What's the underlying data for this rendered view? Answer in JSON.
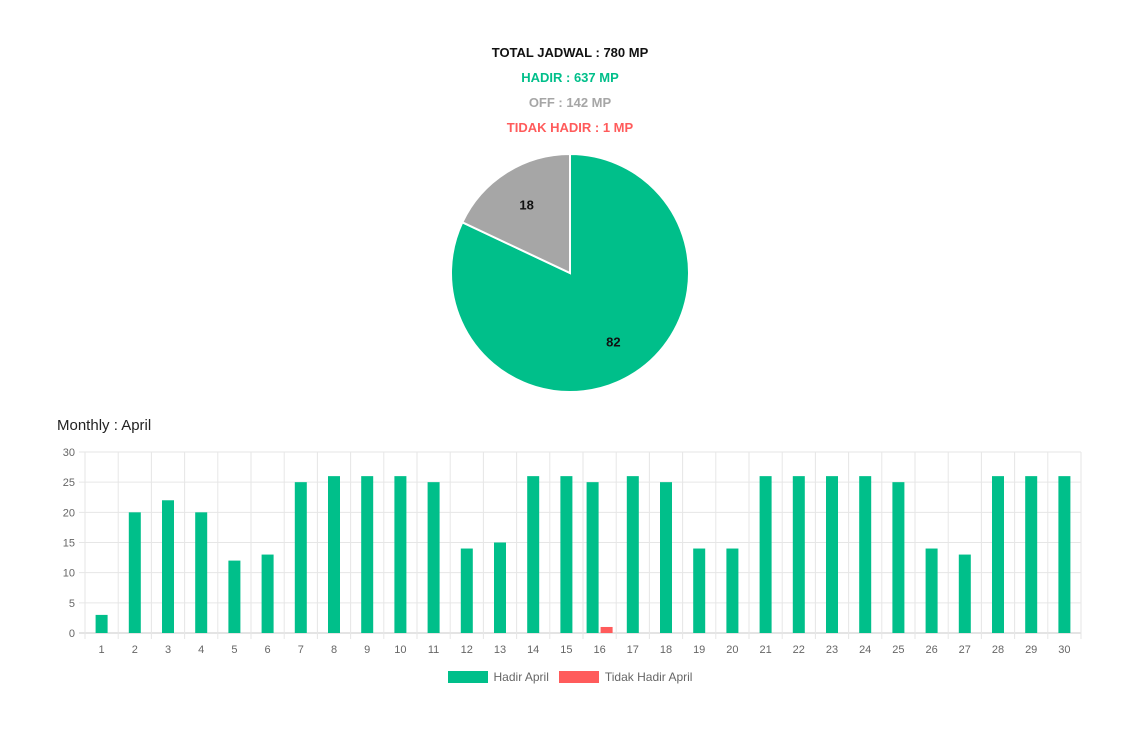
{
  "summary": {
    "total": "TOTAL JADWAL : 780 MP",
    "hadir": "HADIR : 637 MP",
    "off": "OFF : 142 MP",
    "tidak_hadir": "TIDAK HADIR : 1 MP"
  },
  "colors": {
    "total": "#111111",
    "hadir": "#00bf8a",
    "off": "#a6a6a6",
    "tidak_hadir": "#ff5b5b"
  },
  "chart_data": [
    {
      "type": "pie",
      "slices": [
        {
          "label": "82",
          "value": 82,
          "color": "#00bf8a"
        },
        {
          "label": "18",
          "value": 18,
          "color": "#a6a6a6"
        }
      ]
    },
    {
      "type": "bar",
      "title": "Monthly : April",
      "categories": [
        "1",
        "2",
        "3",
        "4",
        "5",
        "6",
        "7",
        "8",
        "9",
        "10",
        "11",
        "12",
        "13",
        "14",
        "15",
        "16",
        "17",
        "18",
        "19",
        "20",
        "21",
        "22",
        "23",
        "24",
        "25",
        "26",
        "27",
        "28",
        "29",
        "30"
      ],
      "series": [
        {
          "name": "Hadir April",
          "color": "#00bf8a",
          "values": [
            3,
            20,
            22,
            20,
            12,
            13,
            25,
            26,
            26,
            26,
            25,
            14,
            15,
            26,
            26,
            25,
            26,
            25,
            14,
            14,
            26,
            26,
            26,
            26,
            25,
            14,
            13,
            26,
            26,
            26
          ]
        },
        {
          "name": "Tidak Hadir April",
          "color": "#ff5b5b",
          "values": [
            0,
            0,
            0,
            0,
            0,
            0,
            0,
            0,
            0,
            0,
            0,
            0,
            0,
            0,
            0,
            1,
            0,
            0,
            0,
            0,
            0,
            0,
            0,
            0,
            0,
            0,
            0,
            0,
            0,
            0
          ]
        }
      ],
      "yticks": [
        0,
        5,
        10,
        15,
        20,
        25,
        30
      ],
      "ylim": [
        0,
        30
      ],
      "grid": true,
      "legend_position": "bottom"
    }
  ]
}
